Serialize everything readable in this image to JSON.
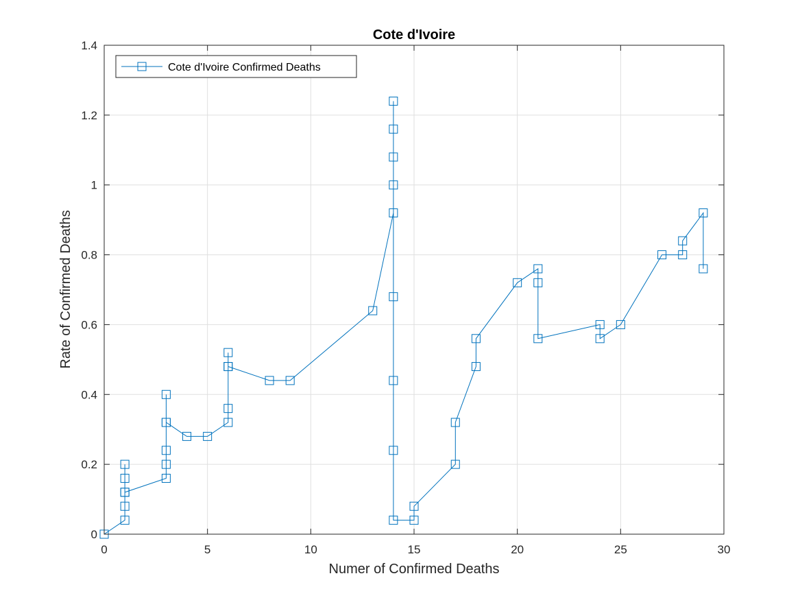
{
  "chart_data": {
    "type": "line",
    "title": "Cote d'Ivoire",
    "xlabel": "Numer of Confirmed Deaths",
    "ylabel": "Rate of Confirmed Deaths",
    "xlim": [
      0,
      30
    ],
    "ylim": [
      0,
      1.4
    ],
    "xticks": [
      0,
      5,
      10,
      15,
      20,
      25,
      30
    ],
    "xtick_labels": [
      "0",
      "5",
      "10",
      "15",
      "20",
      "25",
      "30"
    ],
    "yticks": [
      0,
      0.2,
      0.4,
      0.6,
      0.8,
      1,
      1.2,
      1.4
    ],
    "ytick_labels": [
      "0",
      "0.2",
      "0.4",
      "0.6",
      "0.8",
      "1",
      "1.2",
      "1.4"
    ],
    "grid": true,
    "legend_position": "top-left",
    "series": [
      {
        "name": "Cote d'Ivoire Confirmed Deaths",
        "color": "#0072BD",
        "marker": "square",
        "x": [
          0,
          1,
          1,
          1,
          1,
          1,
          1,
          3,
          3,
          3,
          3,
          3,
          3,
          4,
          5,
          6,
          6,
          6,
          6,
          6,
          8,
          9,
          13,
          14,
          14,
          14,
          14,
          14,
          14,
          14,
          14,
          14,
          15,
          15,
          17,
          17,
          18,
          18,
          20,
          21,
          21,
          21,
          24,
          24,
          25,
          27,
          28,
          28,
          29,
          29
        ],
        "y": [
          0,
          0.04,
          0.08,
          0.12,
          0.16,
          0.2,
          0.12,
          0.16,
          0.2,
          0.24,
          0.32,
          0.4,
          0.32,
          0.28,
          0.28,
          0.32,
          0.36,
          0.48,
          0.52,
          0.48,
          0.44,
          0.44,
          0.64,
          0.92,
          1.0,
          1.08,
          1.16,
          1.24,
          0.68,
          0.44,
          0.24,
          0.04,
          0.04,
          0.08,
          0.2,
          0.32,
          0.48,
          0.56,
          0.72,
          0.76,
          0.72,
          0.56,
          0.6,
          0.56,
          0.6,
          0.8,
          0.8,
          0.84,
          0.92,
          0.76
        ]
      }
    ]
  }
}
